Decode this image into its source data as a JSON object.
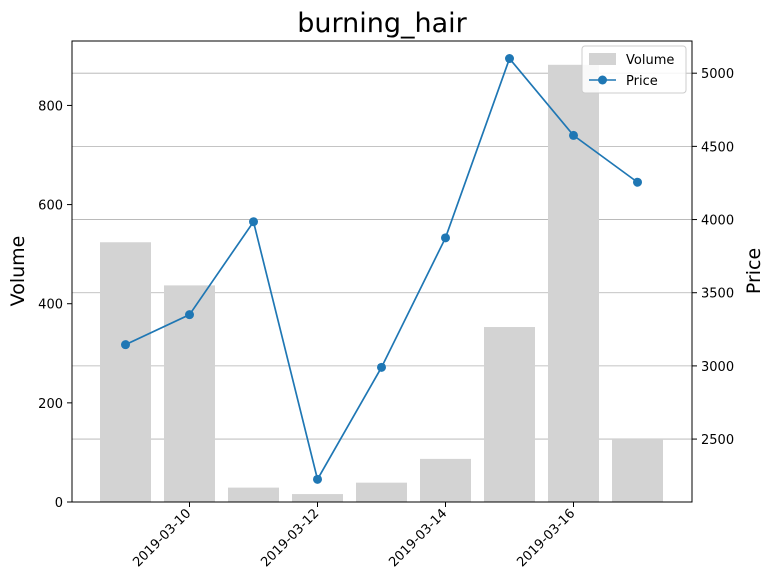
{
  "chart_data": {
    "type": "bar+line",
    "title": "burning_hair",
    "xlabel": "",
    "ylabel_left": "Volume",
    "ylabel_right": "Price",
    "dates": [
      "2019-03-09",
      "2019-03-10",
      "2019-03-11",
      "2019-03-12",
      "2019-03-13",
      "2019-03-14",
      "2019-03-15",
      "2019-03-16",
      "2019-03-17"
    ],
    "x_ticks": [
      "2019-03-10",
      "2019-03-12",
      "2019-03-14",
      "2019-03-16"
    ],
    "y_left_ticks": [
      0,
      200,
      400,
      600,
      800
    ],
    "y_right_ticks": [
      2500,
      3000,
      3500,
      4000,
      4500,
      5000
    ],
    "y_left_range": [
      0,
      930
    ],
    "y_right_range": [
      2070,
      5220
    ],
    "grid": "horizontal, right axis",
    "legend_position": "top-right",
    "series": [
      {
        "name": "Volume",
        "kind": "bar",
        "color": "#d3d3d3",
        "values": [
          524,
          437,
          29,
          16,
          39,
          87,
          353,
          882,
          127
        ]
      },
      {
        "name": "Price",
        "kind": "line",
        "color": "#1f77b4",
        "values": [
          3145,
          3350,
          3985,
          2225,
          2990,
          3875,
          5100,
          4575,
          4255
        ]
      }
    ]
  }
}
